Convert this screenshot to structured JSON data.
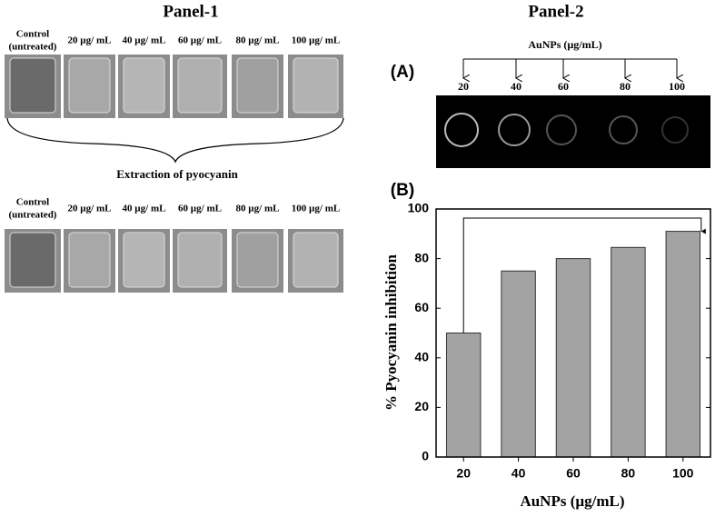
{
  "panel1": {
    "title": "Panel-1",
    "top_labels": [
      [
        "Control",
        "(untreated)"
      ],
      [
        "20 µg/ mL"
      ],
      [
        "40 µg/ mL"
      ],
      [
        "60 µg/ mL"
      ],
      [
        "80 µg/ mL"
      ],
      [
        "100 µg/ mL"
      ]
    ],
    "middle_label": "Extraction of pyocyanin",
    "bottom_labels": [
      [
        "Control",
        "(untreated)"
      ],
      [
        "20 µg/ mL"
      ],
      [
        "40 µg/ mL"
      ],
      [
        "60 µg/ mL"
      ],
      [
        "80 µg/ mL"
      ],
      [
        "100 µg/ mL"
      ]
    ]
  },
  "panel2": {
    "title": "Panel-2",
    "a_label": "(A)",
    "a_axis_label": "AuNPs (µg/mL)",
    "a_doses": [
      "20",
      "40",
      "60",
      "80",
      "100"
    ],
    "b_label": "(B)"
  },
  "chart_data": {
    "type": "bar",
    "x_label": "AuNPs (µg/mL)",
    "y_label": "% Pyocyanin inhibition",
    "categories": [
      "20",
      "40",
      "60",
      "80",
      "100"
    ],
    "values": [
      50,
      75,
      80,
      84.5,
      91
    ],
    "color": "#a3a3a3",
    "ylim": [
      0,
      100
    ],
    "yticks": [
      0,
      20,
      40,
      60,
      80,
      100
    ]
  }
}
